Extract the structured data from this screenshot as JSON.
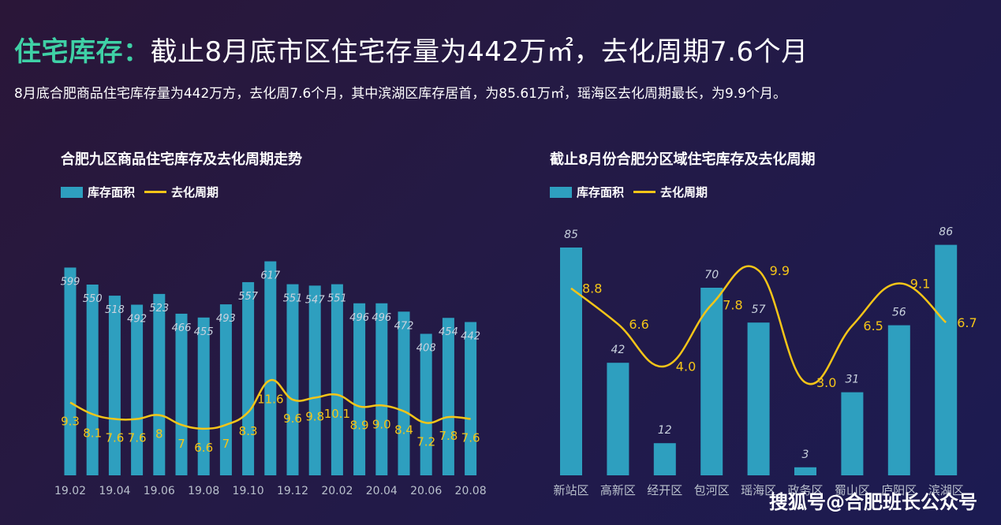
{
  "header": {
    "title_highlight": "住宅库存：",
    "title_rest": "截止8月底市区住宅存量为442万㎡，去化周期7.6个月",
    "subtitle": "8月底合肥商品住宅库存量为442万方，去化周7.6个月，其中滨湖区库存居首，为85.61万㎡，瑶海区去化周期最长，为9.9个月。"
  },
  "colors": {
    "bar": "#2e9fbf",
    "line": "#f5c518",
    "accent": "#3fd1a6"
  },
  "watermark": "搜狐号@合肥班长公众号",
  "chart_data": [
    {
      "type": "bar",
      "title": "合肥九区商品住宅库存及去化周期走势",
      "legend": [
        "库存面积",
        "去化周期"
      ],
      "categories": [
        "19.02",
        "19.03",
        "19.04",
        "19.05",
        "19.06",
        "19.07",
        "19.08",
        "19.09",
        "19.10",
        "19.11",
        "19.12",
        "20.01",
        "20.02",
        "20.03",
        "20.04",
        "20.05",
        "20.06",
        "20.07",
        "20.08"
      ],
      "tick_labels": [
        "19.02",
        "19.04",
        "19.06",
        "19.08",
        "19.10",
        "19.12",
        "20.02",
        "20.04",
        "20.06",
        "20.08"
      ],
      "series": [
        {
          "name": "库存面积",
          "type": "bar",
          "values": [
            599,
            550,
            518,
            492,
            523,
            466,
            455,
            493,
            557,
            617,
            551,
            547,
            551,
            496,
            496,
            472,
            408,
            454,
            442
          ]
        },
        {
          "name": "去化周期",
          "type": "line",
          "values": [
            9.3,
            8.1,
            7.6,
            7.6,
            8,
            7,
            6.6,
            7,
            8.3,
            11.6,
            9.6,
            9.8,
            10.1,
            8.9,
            9.0,
            8.4,
            7.2,
            7.8,
            7.6
          ]
        }
      ],
      "bar_labels": [
        "599",
        "550",
        "518",
        "492",
        "523",
        "466",
        "455",
        "493",
        "557",
        "617",
        "551",
        "547",
        "551",
        "496",
        "496",
        "472",
        "408",
        "454",
        "442"
      ],
      "line_labels": [
        "9.3",
        "8.1",
        "7.6",
        "7.6",
        "8",
        "7",
        "6.6",
        "7",
        "8.3",
        "11.6",
        "9.6",
        "9.8",
        "10.1",
        "8.9",
        "9.0",
        "8.4",
        "7.2",
        "7.8",
        "7.6"
      ]
    },
    {
      "type": "bar",
      "title": "截止8月份合肥分区域住宅库存及去化周期",
      "legend": [
        "库存面积",
        "去化周期"
      ],
      "categories": [
        "新站区",
        "高新区",
        "经开区",
        "包河区",
        "瑶海区",
        "政务区",
        "蜀山区",
        "庐阳区",
        "滨湖区"
      ],
      "tick_labels": [
        "新站区",
        "高新区",
        "经开区",
        "包河区",
        "瑶海区",
        "政务区",
        "蜀山区",
        "庐阳区",
        "滨湖区"
      ],
      "series": [
        {
          "name": "库存面积",
          "type": "bar",
          "values": [
            85,
            42,
            12,
            70,
            57,
            3,
            31,
            56,
            86
          ]
        },
        {
          "name": "去化周期",
          "type": "line",
          "values": [
            8.8,
            6.6,
            4.0,
            7.8,
            9.9,
            3.0,
            6.5,
            9.1,
            6.7
          ]
        }
      ],
      "bar_labels": [
        "85",
        "42",
        "12",
        "70",
        "57",
        "3",
        "31",
        "56",
        "86"
      ],
      "line_labels": [
        "8.8",
        "6.6",
        "4.0",
        "7.8",
        "9.9",
        "3.0",
        "6.5",
        "9.1",
        "6.7"
      ]
    }
  ]
}
